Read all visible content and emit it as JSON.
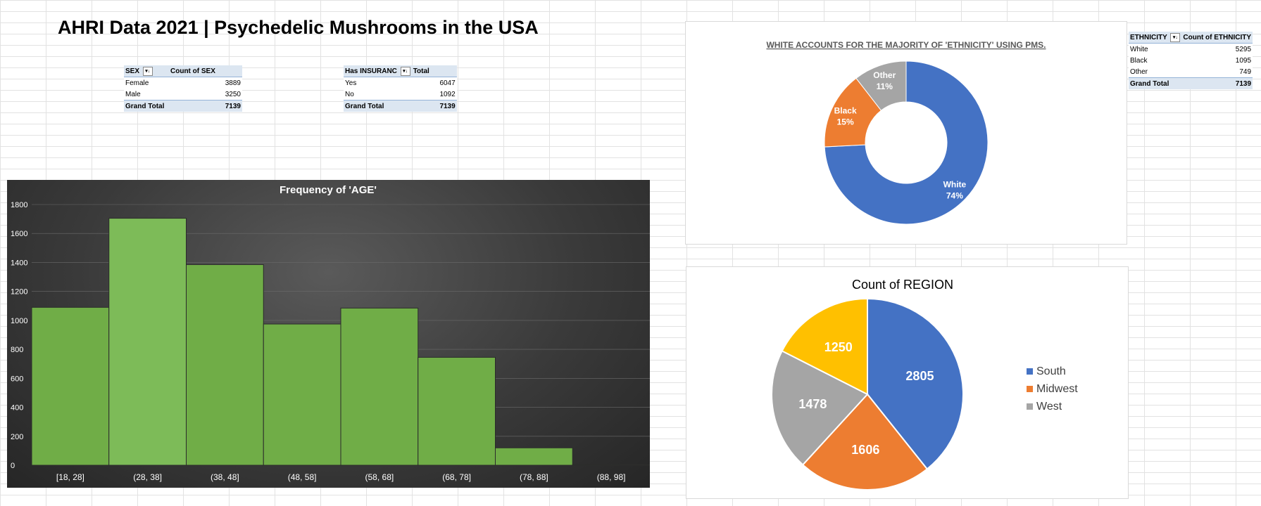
{
  "page_title": "AHRI Data 2021 | Psychedelic Mushrooms in the USA",
  "sex_table": {
    "headers": [
      "SEX",
      "Count of SEX"
    ],
    "rows": [
      [
        "Female",
        "3889"
      ],
      [
        "Male",
        "3250"
      ]
    ],
    "total_label": "Grand Total",
    "total_value": "7139"
  },
  "insurance_table": {
    "headers": [
      "Has INSURANC",
      "Total"
    ],
    "rows": [
      [
        "Yes",
        "6047"
      ],
      [
        "No",
        "1092"
      ]
    ],
    "total_label": "Grand Total",
    "total_value": "7139"
  },
  "ethnicity_table": {
    "headers": [
      "ETHNICITY",
      "Count of ETHNICITY"
    ],
    "rows": [
      [
        "White",
        "5295"
      ],
      [
        "Black",
        "1095"
      ],
      [
        "Other",
        "749"
      ]
    ],
    "total_label": "Grand Total",
    "total_value": "7139"
  },
  "colors": {
    "green_bar": "#70ad47",
    "blue": "#4472c4",
    "orange": "#ed7d31",
    "gray": "#a5a5a5",
    "gold": "#ffc000"
  },
  "chart_data": [
    {
      "type": "bar",
      "title": "Frequency of 'AGE'",
      "categories": [
        "[18, 28]",
        "(28, 38]",
        "(38, 48]",
        "(48, 58]",
        "(58, 68]",
        "(68, 78]",
        "(78, 88]",
        "(88, 98]"
      ],
      "values": [
        1090,
        1705,
        1385,
        975,
        1085,
        745,
        120,
        5
      ],
      "ylim": [
        0,
        1800
      ],
      "yticks": [
        0,
        200,
        400,
        600,
        800,
        1000,
        1200,
        1400,
        1600,
        1800
      ],
      "grid": true,
      "legend": "none"
    },
    {
      "type": "pie",
      "variant": "donut",
      "title": "WHITE ACCOUNTS FOR THE MAJORITY OF 'ETHNICITY' USING PMS.",
      "slices": [
        {
          "label": "White",
          "value": 5295,
          "pct_label": "74%",
          "color": "#4472c4"
        },
        {
          "label": "Black",
          "value": 1095,
          "pct_label": "15%",
          "color": "#ed7d31"
        },
        {
          "label": "Other",
          "value": 749,
          "pct_label": "11%",
          "color": "#a5a5a5"
        }
      ],
      "legend": "none"
    },
    {
      "type": "pie",
      "title": "Count of REGION",
      "slices": [
        {
          "label": "South",
          "value": 2805,
          "color": "#4472c4"
        },
        {
          "label": "Midwest",
          "value": 1606,
          "color": "#ed7d31"
        },
        {
          "label": "West",
          "value": 1478,
          "color": "#a5a5a5"
        },
        {
          "label": "",
          "value": 1250,
          "color": "#ffc000"
        }
      ],
      "legend_entries": [
        "South",
        "Midwest",
        "West"
      ],
      "legend": "right"
    }
  ]
}
